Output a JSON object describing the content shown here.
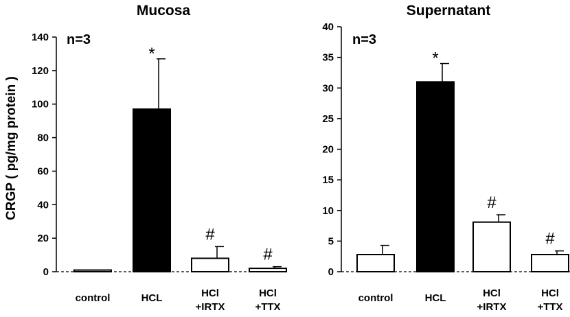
{
  "ylabel": "CRGP ( pg/mg protein )",
  "chart_data": [
    {
      "type": "bar",
      "title": "Mucosa",
      "annotation": "n=3",
      "ylim": [
        0,
        140
      ],
      "yticks": [
        0,
        20,
        40,
        60,
        80,
        100,
        120,
        140
      ],
      "categories": [
        [
          "control"
        ],
        [
          "HCL"
        ],
        [
          "HCl",
          "+IRTX"
        ],
        [
          "HCl",
          "+TTX"
        ]
      ],
      "values": [
        1,
        97,
        8,
        2
      ],
      "errors": [
        0,
        30,
        7,
        1
      ],
      "fills": [
        "#ffffff",
        "#000000",
        "#ffffff",
        "#ffffff"
      ],
      "marks": [
        "",
        "*",
        "#",
        "#"
      ]
    },
    {
      "type": "bar",
      "title": "Supernatant",
      "annotation": "n=3",
      "ylim": [
        0,
        40
      ],
      "yticks": [
        0,
        5,
        10,
        15,
        20,
        25,
        30,
        35,
        40
      ],
      "categories": [
        [
          "control"
        ],
        [
          "HCL"
        ],
        [
          "HCl",
          "+IRTX"
        ],
        [
          "HCl",
          "+TTX"
        ]
      ],
      "values": [
        2.8,
        31,
        8.1,
        2.8
      ],
      "errors": [
        1.5,
        3,
        1.2,
        0.6
      ],
      "fills": [
        "#ffffff",
        "#000000",
        "#ffffff",
        "#ffffff"
      ],
      "marks": [
        "",
        "*",
        "#",
        "#"
      ]
    }
  ]
}
